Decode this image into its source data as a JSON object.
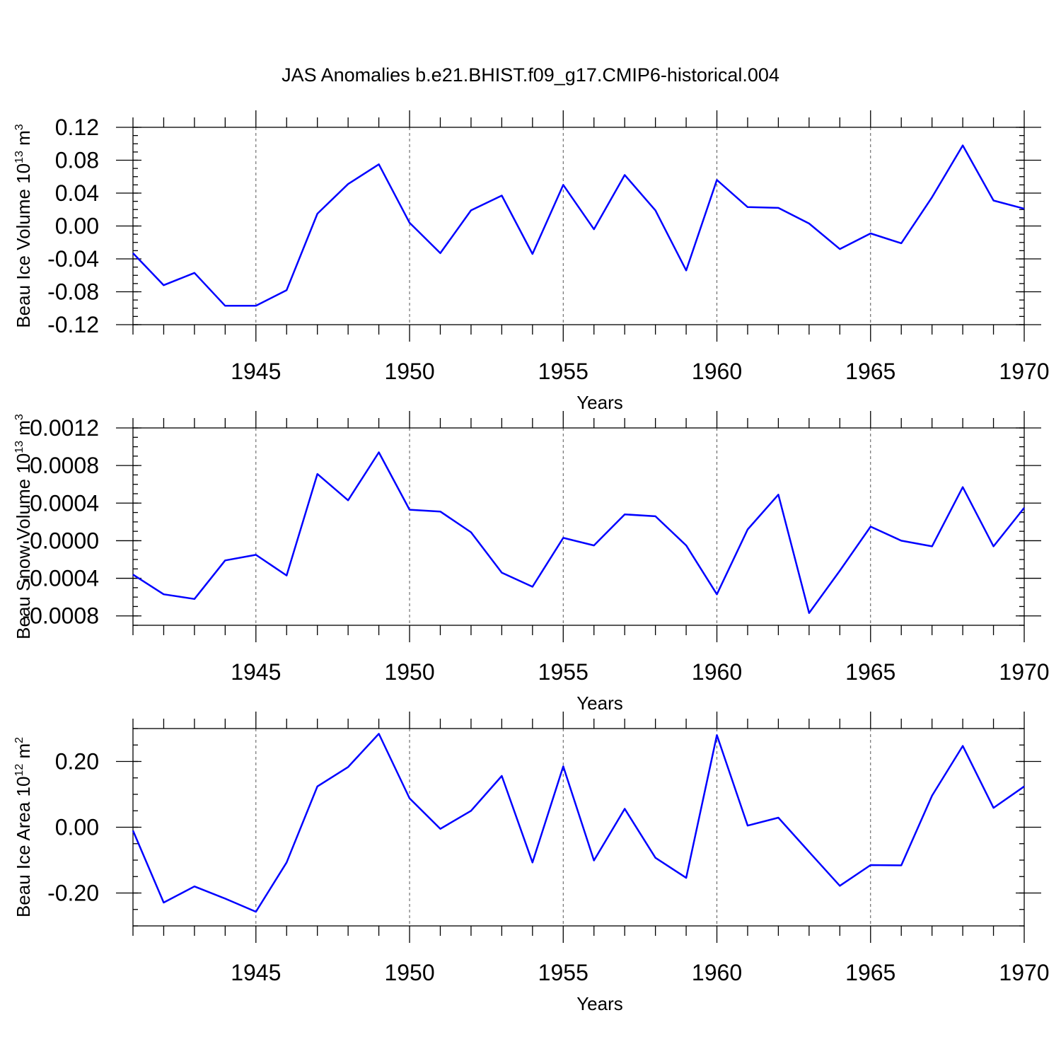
{
  "figure": {
    "title": "JAS Anomalies b.e21.BHIST.f09_g17.CMIP6-historical.004"
  },
  "chart_data": [
    {
      "type": "line",
      "ylabel": "Beau Ice Volume 10",
      "ylabel_exp": "13",
      "ylabel_unit": "m",
      "ylabel_unit_exp": "3",
      "xlabel": "Years",
      "xlim": [
        1941,
        1970
      ],
      "ylim": [
        -0.12,
        0.12
      ],
      "yticks": [
        -0.12,
        -0.08,
        -0.04,
        0.0,
        0.04,
        0.08,
        0.12
      ],
      "ytick_labels": [
        "-0.12",
        "-0.08",
        "-0.04",
        "0.00",
        "0.04",
        "0.08",
        "0.12"
      ],
      "yminor_step": 0.01,
      "xticks": [
        1945,
        1950,
        1955,
        1960,
        1965,
        1970
      ],
      "xtick_labels": [
        "1945",
        "1950",
        "1955",
        "1960",
        "1965",
        "1970"
      ],
      "grid_x": [
        1945,
        1950,
        1955,
        1960,
        1965
      ],
      "color": "#0000ff",
      "x": [
        1941,
        1942,
        1943,
        1944,
        1945,
        1946,
        1947,
        1948,
        1949,
        1950,
        1951,
        1952,
        1953,
        1954,
        1955,
        1956,
        1957,
        1958,
        1959,
        1960,
        1961,
        1962,
        1963,
        1964,
        1965,
        1966,
        1967,
        1968,
        1969,
        1970
      ],
      "series": [
        {
          "name": "Beau Ice Volume",
          "values": [
            -0.033,
            -0.072,
            -0.057,
            -0.097,
            -0.097,
            -0.078,
            0.015,
            0.051,
            0.075,
            0.004,
            -0.033,
            0.019,
            0.037,
            -0.034,
            0.05,
            -0.004,
            0.062,
            0.019,
            -0.054,
            0.056,
            0.023,
            0.022,
            0.003,
            -0.028,
            -0.009,
            -0.021,
            0.035,
            0.098,
            0.031,
            0.021
          ]
        }
      ]
    },
    {
      "type": "line",
      "ylabel": "Beau Snow Volume 10",
      "ylabel_exp": "13",
      "ylabel_unit": "m",
      "ylabel_unit_exp": "3",
      "xlabel": "Years",
      "xlim": [
        1941,
        1970
      ],
      "ylim": [
        -0.0009,
        0.0012
      ],
      "yticks": [
        -0.0008,
        -0.0004,
        0.0,
        0.0004,
        0.0008,
        0.0012
      ],
      "ytick_labels": [
        "-0.0008",
        "-0.0004",
        "-0.0000",
        "0.0004",
        "0.0008",
        "0.0012"
      ],
      "yminor_step": 0.0001,
      "xticks": [
        1945,
        1950,
        1955,
        1960,
        1965,
        1970
      ],
      "xtick_labels": [
        "1945",
        "1950",
        "1955",
        "1960",
        "1965",
        "1970"
      ],
      "grid_x": [
        1945,
        1950,
        1955,
        1960,
        1965
      ],
      "color": "#0000ff",
      "x": [
        1941,
        1942,
        1943,
        1944,
        1945,
        1946,
        1947,
        1948,
        1949,
        1950,
        1951,
        1952,
        1953,
        1954,
        1955,
        1956,
        1957,
        1958,
        1959,
        1960,
        1961,
        1962,
        1963,
        1964,
        1965,
        1966,
        1967,
        1968,
        1969,
        1970
      ],
      "series": [
        {
          "name": "Beau Snow Volume",
          "values": [
            -0.00036,
            -0.00057,
            -0.00062,
            -0.00021,
            -0.00015,
            -0.00037,
            0.00071,
            0.00043,
            0.00094,
            0.00033,
            0.00031,
            9e-05,
            -0.00034,
            -0.00049,
            3e-05,
            -5e-05,
            0.00028,
            0.00026,
            -5e-05,
            -0.00057,
            0.00012,
            0.00049,
            -0.00077,
            -0.00032,
            0.00015,
            0.0,
            -6e-05,
            0.00057,
            -6e-05,
            0.00035
          ]
        }
      ]
    },
    {
      "type": "line",
      "ylabel": "Beau Ice Area 10",
      "ylabel_exp": "12",
      "ylabel_unit": "m",
      "ylabel_unit_exp": "2",
      "xlabel": "Years",
      "xlim": [
        1941,
        1970
      ],
      "ylim": [
        -0.3,
        0.3
      ],
      "yticks": [
        -0.2,
        0.0,
        0.2
      ],
      "ytick_labels": [
        "-0.20",
        "0.00",
        "0.20"
      ],
      "yminor_step": 0.05,
      "xticks": [
        1945,
        1950,
        1955,
        1960,
        1965,
        1970
      ],
      "xtick_labels": [
        "1945",
        "1950",
        "1955",
        "1960",
        "1965",
        "1970"
      ],
      "grid_x": [
        1945,
        1950,
        1955,
        1960,
        1965
      ],
      "color": "#0000ff",
      "x": [
        1941,
        1942,
        1943,
        1944,
        1945,
        1946,
        1947,
        1948,
        1949,
        1950,
        1951,
        1952,
        1953,
        1954,
        1955,
        1956,
        1957,
        1958,
        1959,
        1960,
        1961,
        1962,
        1963,
        1964,
        1965,
        1966,
        1967,
        1968,
        1969,
        1970
      ],
      "series": [
        {
          "name": "Beau Ice Area",
          "values": [
            -0.01,
            -0.229,
            -0.18,
            -0.217,
            -0.257,
            -0.107,
            0.124,
            0.183,
            0.284,
            0.088,
            -0.005,
            0.05,
            0.156,
            -0.107,
            0.185,
            -0.101,
            0.056,
            -0.093,
            -0.154,
            0.28,
            0.005,
            0.029,
            -0.075,
            -0.178,
            -0.115,
            -0.116,
            0.096,
            0.247,
            0.059,
            0.124
          ]
        }
      ]
    }
  ]
}
